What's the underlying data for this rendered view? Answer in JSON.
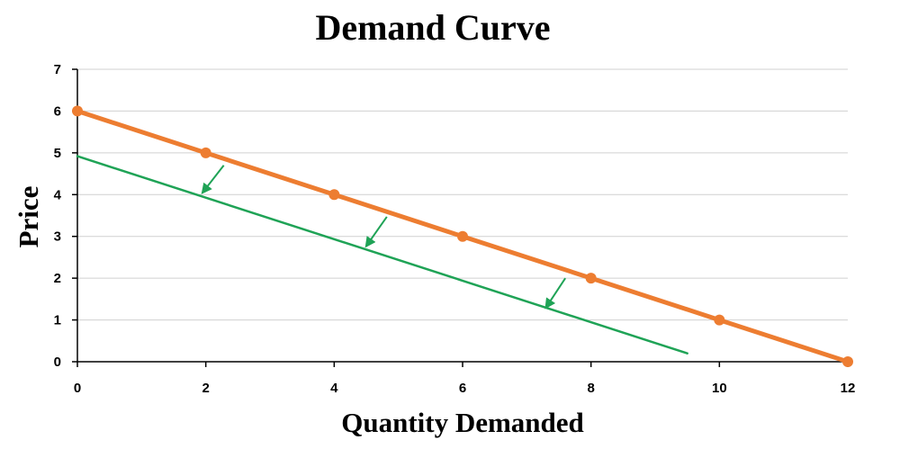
{
  "chart_data": {
    "type": "line",
    "title": "Demand Curve",
    "xlabel": "Quantity Demanded",
    "ylabel": "Price",
    "xlim": [
      0,
      12
    ],
    "ylim": [
      0,
      7
    ],
    "x_ticks": [
      0,
      2,
      4,
      6,
      8,
      10,
      12
    ],
    "y_ticks": [
      0,
      1,
      2,
      3,
      4,
      5,
      6,
      7
    ],
    "grid": true,
    "series": [
      {
        "color": "#ED7D31",
        "markers": true,
        "points": [
          {
            "x": 0,
            "y": 6
          },
          {
            "x": 2,
            "y": 5
          },
          {
            "x": 4,
            "y": 4
          },
          {
            "x": 6,
            "y": 3
          },
          {
            "x": 8,
            "y": 2
          },
          {
            "x": 10,
            "y": 1
          },
          {
            "x": 12,
            "y": 0
          }
        ]
      },
      {
        "color": "#1FA356",
        "markers": false,
        "points": [
          {
            "x": 0,
            "y": 4.92
          },
          {
            "x": 9.5,
            "y": 0.2
          }
        ]
      }
    ],
    "annotations": [
      {
        "type": "arrow",
        "color": "#1FA356",
        "from": {
          "x": 2.28,
          "y": 4.7
        },
        "to": {
          "x": 1.95,
          "y": 4.05
        }
      },
      {
        "type": "arrow",
        "color": "#1FA356",
        "from": {
          "x": 4.82,
          "y": 3.47
        },
        "to": {
          "x": 4.5,
          "y": 2.77
        }
      },
      {
        "type": "arrow",
        "color": "#1FA356",
        "from": {
          "x": 7.6,
          "y": 2.0
        },
        "to": {
          "x": 7.3,
          "y": 1.3
        }
      }
    ]
  }
}
